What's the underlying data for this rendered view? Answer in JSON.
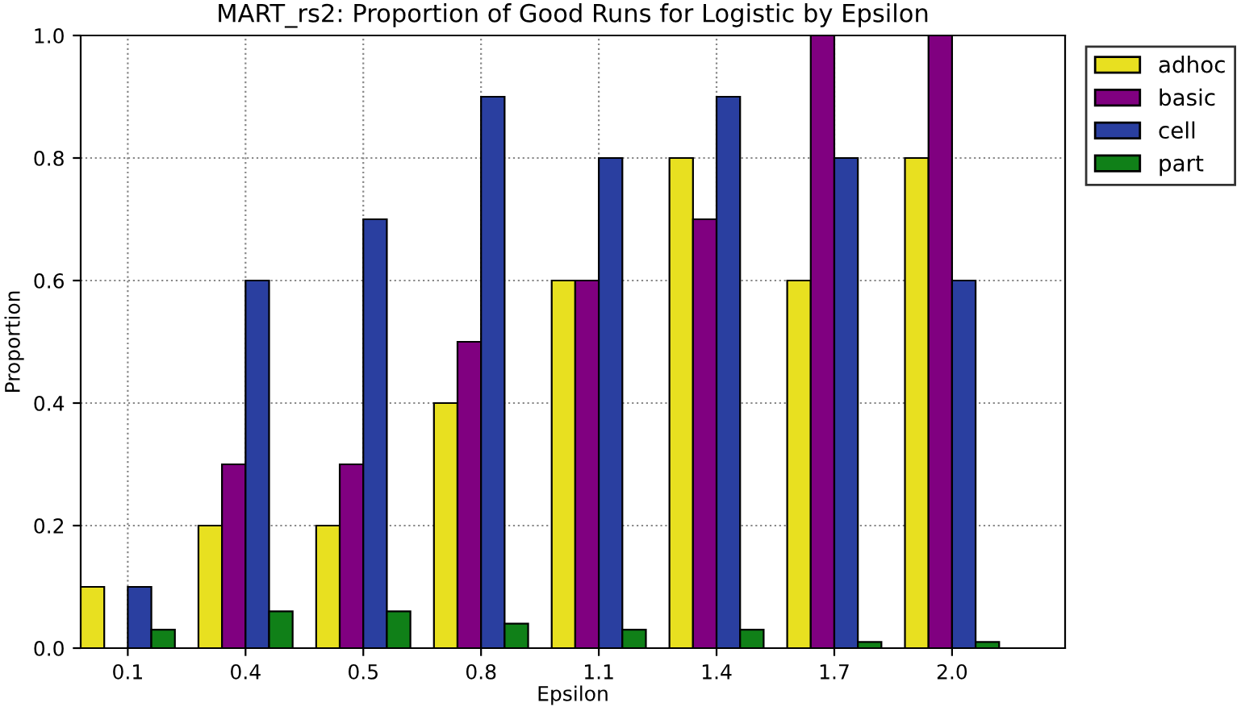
{
  "chart_data": {
    "type": "bar",
    "title": "MART_rs2: Proportion of Good Runs for Logistic by Epsilon",
    "xlabel": "Epsilon",
    "ylabel": "Proportion",
    "categories": [
      "0.1",
      "0.4",
      "0.5",
      "0.8",
      "1.1",
      "1.4",
      "1.7",
      "2.0"
    ],
    "series": [
      {
        "name": "adhoc",
        "color": "#e8e020",
        "values": [
          0.1,
          0.2,
          0.2,
          0.4,
          0.6,
          0.8,
          0.6,
          0.8
        ]
      },
      {
        "name": "basic",
        "color": "#800080",
        "values": [
          null,
          0.3,
          0.3,
          0.5,
          0.6,
          0.7,
          1.0,
          1.0
        ]
      },
      {
        "name": "cell",
        "color": "#2a3fa0",
        "values": [
          0.1,
          0.6,
          0.7,
          0.9,
          0.8,
          0.9,
          0.8,
          0.6
        ]
      },
      {
        "name": "part",
        "color": "#108018",
        "values": [
          0.03,
          0.06,
          0.06,
          0.04,
          0.03,
          0.03,
          0.01,
          0.01
        ]
      }
    ],
    "ylim": [
      0,
      1.0
    ],
    "yticks": [
      {
        "value": 0,
        "label": "0.0"
      },
      0.2,
      0.4,
      0.6,
      0.8,
      {
        "value": 1.0,
        "label": "1.0"
      }
    ],
    "grid": true,
    "legend": "top right"
  }
}
